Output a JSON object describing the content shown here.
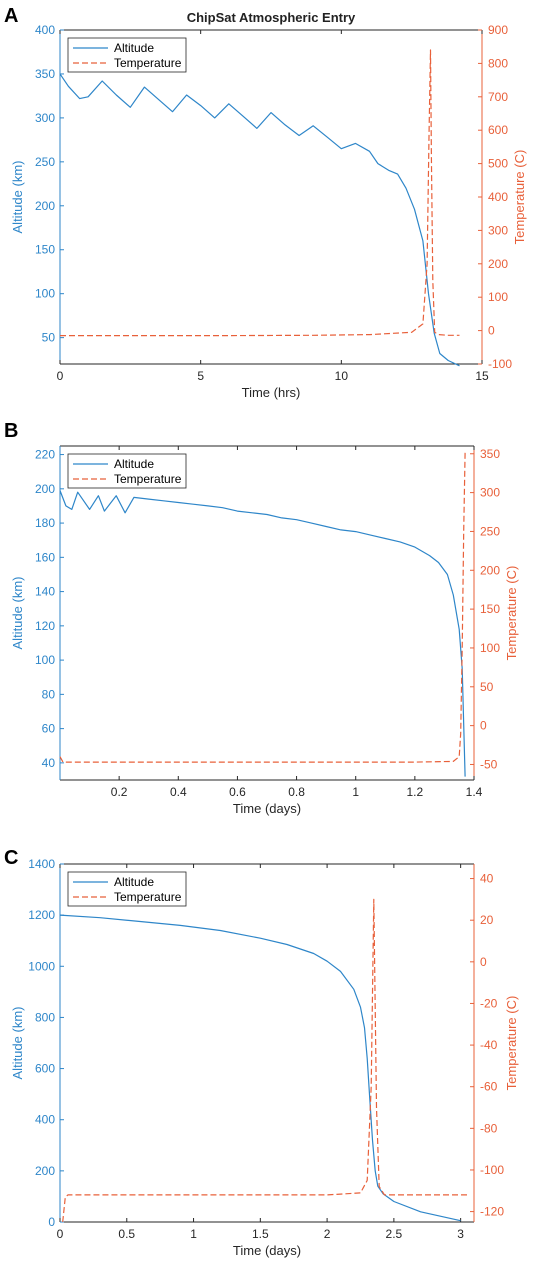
{
  "colors": {
    "altitude": "#2e86c9",
    "temperature": "#e8603a",
    "axis": "#262626"
  },
  "chart_data": [
    {
      "panel": "A",
      "type": "line",
      "title": "ChipSat Atmospheric Entry",
      "xlabel": "Time (hrs)",
      "ylabel_left": "Altitude (km)",
      "ylabel_right": "Temperature (C)",
      "xlim": [
        0,
        15
      ],
      "ylim_left": [
        20,
        400
      ],
      "ylim_right": [
        -100,
        900
      ],
      "xticks": [
        0,
        5,
        10,
        15
      ],
      "yticks_left": [
        50,
        100,
        150,
        200,
        250,
        300,
        350,
        400
      ],
      "yticks_right": [
        -100,
        0,
        100,
        200,
        300,
        400,
        500,
        600,
        700,
        800,
        900
      ],
      "legend": {
        "location": "top-left",
        "entries": [
          "Altitude",
          "Temperature"
        ]
      },
      "series": [
        {
          "name": "Altitude",
          "axis": "left",
          "style": "solid",
          "x": [
            0,
            0.3,
            0.7,
            1.0,
            1.5,
            2.0,
            2.5,
            3.0,
            3.5,
            4.0,
            4.5,
            5.0,
            5.5,
            6.0,
            6.5,
            7.0,
            7.5,
            8.0,
            8.5,
            9.0,
            9.5,
            10.0,
            10.5,
            11.0,
            11.3,
            11.7,
            12.0,
            12.3,
            12.6,
            12.9,
            13.1,
            13.3,
            13.5,
            13.8,
            14.2
          ],
          "y": [
            350,
            336,
            322,
            324,
            342,
            326,
            312,
            335,
            321,
            307,
            326,
            314,
            300,
            316,
            302,
            288,
            306,
            292,
            280,
            291,
            278,
            265,
            271,
            262,
            248,
            240,
            236,
            220,
            196,
            160,
            100,
            55,
            32,
            24,
            18
          ]
        },
        {
          "name": "Temperature",
          "axis": "right",
          "style": "dashed",
          "x": [
            0,
            3,
            6,
            9,
            11,
            12.5,
            12.9,
            13.05,
            13.12,
            13.17,
            13.2,
            13.25,
            13.32,
            13.45,
            13.8,
            14.2
          ],
          "y": [
            -15,
            -15,
            -15,
            -14,
            -12,
            -5,
            20,
            200,
            600,
            840,
            520,
            150,
            -5,
            -12,
            -14,
            -14
          ]
        }
      ]
    },
    {
      "panel": "B",
      "type": "line",
      "xlabel": "Time (days)",
      "ylabel_left": "Altitude (km)",
      "ylabel_right": "Temperature (C)",
      "xlim": [
        0,
        1.4
      ],
      "ylim_left": [
        30,
        225
      ],
      "ylim_right": [
        -70,
        360
      ],
      "xticks": [
        0.2,
        0.4,
        0.6,
        0.8,
        1.0,
        1.2,
        1.4
      ],
      "xticklabels": [
        "0.2",
        "0.4",
        "0.6",
        "0.8",
        "1",
        "1.2",
        "1.4"
      ],
      "yticks_left": [
        40,
        60,
        80,
        100,
        120,
        140,
        160,
        180,
        200,
        220
      ],
      "yticks_right": [
        -50,
        0,
        50,
        100,
        150,
        200,
        250,
        300,
        350
      ],
      "legend": {
        "location": "top-left",
        "entries": [
          "Altitude",
          "Temperature"
        ]
      },
      "series": [
        {
          "name": "Altitude",
          "axis": "left",
          "style": "solid",
          "x": [
            0,
            0.02,
            0.04,
            0.06,
            0.1,
            0.13,
            0.15,
            0.19,
            0.22,
            0.25,
            0.3,
            0.35,
            0.4,
            0.45,
            0.5,
            0.55,
            0.6,
            0.65,
            0.7,
            0.75,
            0.8,
            0.85,
            0.9,
            0.95,
            1.0,
            1.05,
            1.1,
            1.15,
            1.2,
            1.25,
            1.28,
            1.31,
            1.33,
            1.35,
            1.36,
            1.37
          ],
          "y": [
            199,
            190,
            188,
            198,
            188,
            196,
            187,
            196,
            186,
            195,
            194,
            193,
            192,
            191,
            190,
            189,
            187,
            186,
            185,
            183,
            182,
            180,
            178,
            176,
            175,
            173,
            171,
            169,
            166,
            161,
            157,
            150,
            138,
            118,
            95,
            32
          ]
        },
        {
          "name": "Temperature",
          "axis": "right",
          "style": "dashed",
          "x": [
            0,
            0.01,
            0.02,
            0.3,
            0.6,
            0.9,
            1.2,
            1.33,
            1.35,
            1.355,
            1.36,
            1.365,
            1.37
          ],
          "y": [
            -40,
            -47,
            -47,
            -47,
            -47,
            -47,
            -47,
            -46,
            -40,
            -10,
            100,
            250,
            352
          ]
        }
      ]
    },
    {
      "panel": "C",
      "type": "line",
      "xlabel": "Time (days)",
      "ylabel_left": "Altitude (km)",
      "ylabel_right": "Temperature (C)",
      "xlim": [
        0,
        3.1
      ],
      "ylim_left": [
        0,
        1400
      ],
      "ylim_right": [
        -125,
        47
      ],
      "xticks": [
        0,
        0.5,
        1,
        1.5,
        2,
        2.5,
        3
      ],
      "yticks_left": [
        0,
        200,
        400,
        600,
        800,
        1000,
        1200,
        1400
      ],
      "yticks_right": [
        -120,
        -100,
        -80,
        -60,
        -40,
        -20,
        0,
        20,
        40
      ],
      "legend": {
        "location": "top-left",
        "entries": [
          "Altitude",
          "Temperature"
        ]
      },
      "series": [
        {
          "name": "Altitude",
          "axis": "left",
          "style": "solid",
          "x": [
            0,
            0.3,
            0.6,
            0.9,
            1.2,
            1.5,
            1.7,
            1.9,
            2.0,
            2.1,
            2.2,
            2.25,
            2.28,
            2.3,
            2.32,
            2.34,
            2.36,
            2.38,
            2.42,
            2.5,
            2.7,
            3.0
          ],
          "y": [
            1200,
            1190,
            1175,
            1160,
            1140,
            1110,
            1085,
            1050,
            1020,
            980,
            910,
            840,
            760,
            640,
            480,
            320,
            200,
            140,
            110,
            80,
            40,
            5
          ]
        },
        {
          "name": "Temperature",
          "axis": "right",
          "style": "dashed",
          "x": [
            0.02,
            0.04,
            0.06,
            0.5,
            1.0,
            1.5,
            2.0,
            2.25,
            2.3,
            2.33,
            2.35,
            2.37,
            2.39,
            2.43,
            2.6,
            3.0,
            3.05
          ],
          "y": [
            -125,
            -113,
            -112,
            -112,
            -112,
            -112,
            -112,
            -111,
            -105,
            -60,
            30,
            -70,
            -108,
            -112,
            -112,
            -112,
            -112
          ]
        }
      ]
    }
  ]
}
